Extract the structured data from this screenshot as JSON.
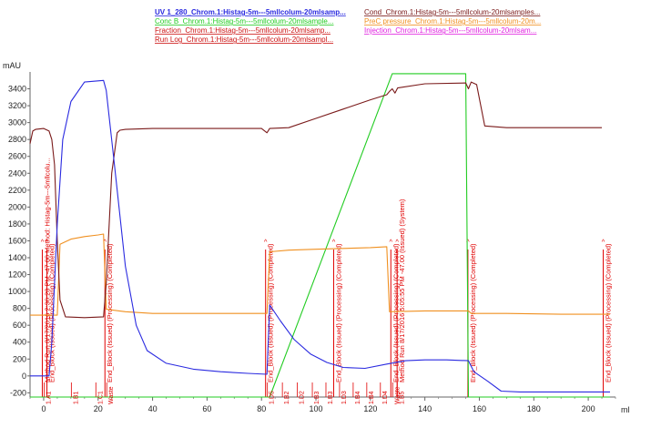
{
  "chart_data": {
    "type": "line",
    "ylabel": "mAU",
    "xlabel": "ml",
    "xlim": [
      -5,
      210
    ],
    "ylim": [
      -250,
      3600
    ],
    "y_ticks": [
      -200,
      0,
      200,
      400,
      600,
      800,
      1000,
      1200,
      1400,
      1600,
      1800,
      2000,
      2200,
      2400,
      2600,
      2800,
      3000,
      3200,
      3400
    ],
    "x_ticks": [
      0,
      20,
      40,
      60,
      80,
      100,
      120,
      140,
      160,
      180,
      200
    ],
    "grid": false,
    "legend_position": "top",
    "legend": [
      {
        "label": "UV 1_280_Chrom.1:Histag-5m---5mllcolum-20mlsamp...",
        "color": "#2a2ae0",
        "bold": true
      },
      {
        "label": "Cond_Chrom.1:Histag-5m---5mllcolum-20mlsamples...",
        "color": "#7a1a1a",
        "bold": false
      },
      {
        "label": "Conc B_Chrom.1:Histag-5m---5mllcolum-20mlsample...",
        "color": "#22cc22",
        "bold": false
      },
      {
        "label": "PreC pressure_Chrom.1:Histag-5m---5mllcolum-20m...",
        "color": "#f09020",
        "bold": false
      },
      {
        "label": "Fraction_Chrom.1:Histag-5m---5mllcolum-20mlsamp...",
        "color": "#cc1010",
        "bold": false
      },
      {
        "label": "Injection_Chrom.1:Histag-5m---5mllcolum-20mlsam...",
        "color": "#e020e0",
        "bold": false
      },
      {
        "label": "Run Log_Chrom.1:Histag-5m---5mllcolum-20mlsampl...",
        "color": "#cc1010",
        "bold": false
      }
    ],
    "series": [
      {
        "name": "UV 1_280_Chrom.1:Histag-5m---5mllcolum-20mlsamp...",
        "color": "#2a2ae0",
        "x": [
          -5,
          2,
          3,
          5,
          7,
          10,
          15,
          22,
          23,
          26,
          30,
          34,
          38,
          45,
          55,
          65,
          75,
          82,
          83,
          87,
          92,
          98,
          104,
          110,
          118,
          126,
          133,
          140,
          148,
          156,
          158,
          163,
          168,
          175,
          190,
          208
        ],
        "y": [
          0,
          0,
          400,
          1800,
          2800,
          3250,
          3480,
          3500,
          3380,
          2500,
          1300,
          600,
          300,
          150,
          80,
          50,
          30,
          20,
          840,
          650,
          430,
          260,
          160,
          100,
          90,
          140,
          180,
          190,
          190,
          180,
          50,
          -60,
          -180,
          -190,
          -190,
          -190
        ]
      },
      {
        "name": "Cond_Chrom.1:Histag-5m---5mllcolum-20mlsamples...",
        "color": "#7a1a1a",
        "x": [
          -5,
          -4,
          -3,
          0,
          2,
          3,
          4,
          5,
          6,
          8,
          15,
          22,
          23,
          25,
          27,
          28,
          30,
          40,
          60,
          80,
          82,
          83,
          90,
          100,
          110,
          120,
          126,
          127,
          128,
          129,
          130,
          140,
          155,
          156,
          157,
          159,
          162,
          170,
          185,
          205
        ],
        "y": [
          2750,
          2900,
          2920,
          2930,
          2900,
          2800,
          2500,
          1600,
          900,
          700,
          690,
          700,
          1100,
          2400,
          2880,
          2910,
          2920,
          2930,
          2930,
          2930,
          2880,
          2930,
          2940,
          3050,
          3160,
          3270,
          3330,
          3370,
          3400,
          3350,
          3410,
          3460,
          3470,
          3400,
          3480,
          3450,
          2960,
          2940,
          2940,
          2940
        ]
      },
      {
        "name": "Conc B_Chrom.1:Histag-5m---5mllcolum-20mlsample...",
        "color": "#22cc22",
        "x": [
          -5,
          83,
          128,
          155,
          156,
          208
        ],
        "y": [
          -250,
          -250,
          3580,
          3580,
          -250,
          -250
        ]
      },
      {
        "name": "PreC pressure_Chrom.1:Histag-5m---5mllcolum-20m...",
        "color": "#f09020",
        "x": [
          -5,
          5,
          6,
          10,
          15,
          20,
          22,
          23,
          30,
          40,
          60,
          80,
          82,
          83,
          90,
          100,
          110,
          120,
          126,
          127,
          140,
          156,
          157,
          170,
          190,
          208
        ],
        "y": [
          720,
          720,
          1560,
          1620,
          1650,
          1670,
          1680,
          790,
          760,
          740,
          740,
          740,
          740,
          1470,
          1490,
          1500,
          1510,
          1520,
          1530,
          760,
          770,
          770,
          740,
          740,
          730,
          730
        ]
      }
    ],
    "run_log_markers": [
      {
        "x": -0.5,
        "text": "Method Run 8/17/2016 2:30:28 PM -47.00 Method: Histag-5m---5mllcolu..."
      },
      {
        "x": 1.2,
        "text": "End_Block (Issued) (Processing) (Completed)"
      },
      {
        "x": 22.5,
        "text": "End_Block (Issued) (Processing) (Completed)"
      },
      {
        "x": 81.5,
        "text": "End_Block (Issued) (Processing) (Completed)"
      },
      {
        "x": 106.5,
        "text": "End_Block (Issued) (Processing) (Completed)"
      },
      {
        "x": 127.5,
        "text": "End_Block (Issued) (Processing) (Completed)"
      },
      {
        "x": 129.8,
        "text": "Method Run 8/17/2016 5:05:55 PM -47.00 (Issued) (System)"
      },
      {
        "x": 155.8,
        "text": "End_Block (Issued) (Processing) (Completed)"
      },
      {
        "x": 205.5,
        "text": "End_Block (Issued) (Processing) (Completed)"
      }
    ],
    "fraction_labels": [
      {
        "x": 0.5,
        "text": "1.A1"
      },
      {
        "x": 10.5,
        "text": "1.B1"
      },
      {
        "x": 19.5,
        "text": "1.C1"
      },
      {
        "x": 23.5,
        "text": "Waste"
      },
      {
        "x": 82.5,
        "text": "1.D5"
      },
      {
        "x": 88,
        "text": "1.B2"
      },
      {
        "x": 93.5,
        "text": "1.D2"
      },
      {
        "x": 99,
        "text": "1.B3"
      },
      {
        "x": 104,
        "text": "1.B3"
      },
      {
        "x": 109,
        "text": "1.D3"
      },
      {
        "x": 114,
        "text": "1.B4"
      },
      {
        "x": 119,
        "text": "1.B4"
      },
      {
        "x": 124,
        "text": "1.D4"
      },
      {
        "x": 128.5,
        "text": "Waste"
      },
      {
        "x": 130.2,
        "text": "1.B5"
      }
    ]
  }
}
